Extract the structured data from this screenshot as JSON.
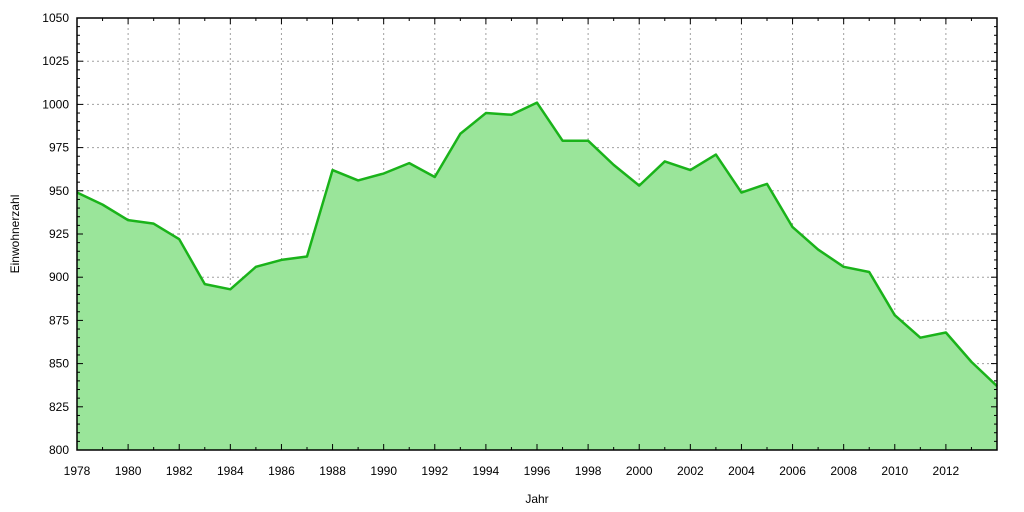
{
  "chart_data": {
    "type": "area",
    "title": "",
    "xlabel": "Jahr",
    "ylabel": "Einwohnerzahl",
    "xlim": [
      1978,
      2014
    ],
    "ylim": [
      800,
      1050
    ],
    "grid": true,
    "x_ticks": [
      1978,
      1980,
      1982,
      1984,
      1986,
      1988,
      1990,
      1992,
      1994,
      1996,
      1998,
      2000,
      2002,
      2004,
      2006,
      2008,
      2010,
      2012
    ],
    "y_ticks": [
      800,
      825,
      850,
      875,
      900,
      925,
      950,
      975,
      1000,
      1025,
      1050
    ],
    "colors": {
      "line": "#1ab31a",
      "fill": "#9ae59a",
      "grid": "#a0a0a0"
    },
    "series": [
      {
        "x": [
          1978,
          1979,
          1980,
          1981,
          1982,
          1983,
          1984,
          1985,
          1986,
          1987,
          1988,
          1989,
          1990,
          1991,
          1992,
          1993,
          1994,
          1995,
          1996,
          1997,
          1998,
          1999,
          2000,
          2001,
          2002,
          2003,
          2004,
          2005,
          2006,
          2007,
          2008,
          2009,
          2010,
          2011,
          2012,
          2013,
          2014
        ],
        "values": [
          949,
          942,
          933,
          931,
          922,
          896,
          893,
          906,
          910,
          912,
          962,
          956,
          960,
          966,
          958,
          983,
          995,
          994,
          1001,
          979,
          979,
          965,
          953,
          967,
          962,
          971,
          949,
          954,
          929,
          916,
          906,
          903,
          878,
          865,
          868,
          851,
          837
        ]
      }
    ]
  }
}
